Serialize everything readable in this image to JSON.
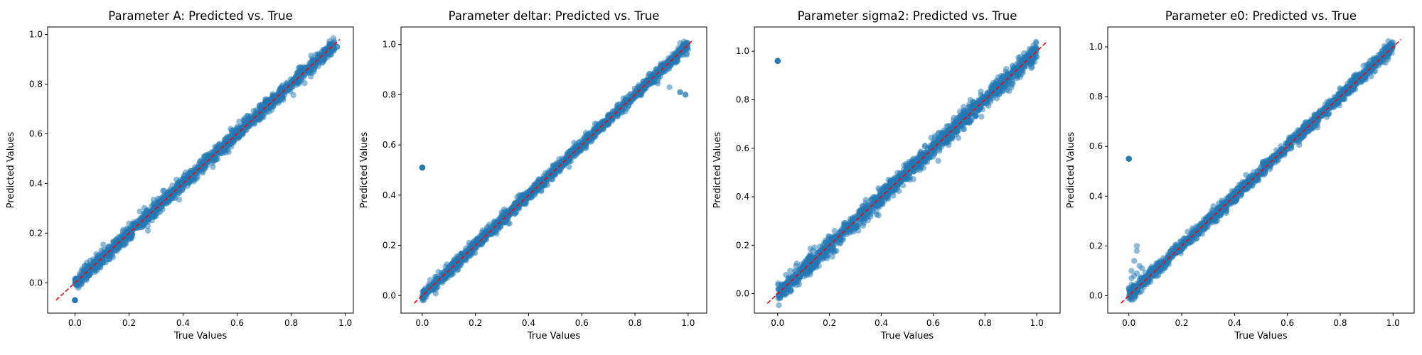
{
  "figure": {
    "marker_color": "#1f77b4",
    "identity_line_color": "#ff0000"
  },
  "chart_data": [
    {
      "type": "scatter",
      "title": "Parameter A: Predicted vs. True",
      "xlabel": "True Values",
      "ylabel": "Predicted Values",
      "xlim": [
        -0.101,
        1.03
      ],
      "ylim": [
        -0.122,
        1.03
      ],
      "xticks": [
        "0.0",
        "0.2",
        "0.4",
        "0.6",
        "0.8",
        "1.0"
      ],
      "yticks": [
        "0.0",
        "0.2",
        "0.4",
        "0.6",
        "0.8",
        "1.0"
      ],
      "grid": false,
      "identity_line": [
        -0.07,
        0.98
      ],
      "band": {
        "x_range": [
          0.0,
          0.96
        ],
        "noise": 0.015
      },
      "outliers": [
        {
          "x": 0.0,
          "y": -0.07,
          "count": 6
        },
        {
          "x": 0.27,
          "y": 0.21,
          "count": 1
        },
        {
          "x": 0.97,
          "y": 0.95,
          "count": 2
        }
      ]
    },
    {
      "type": "scatter",
      "title": "Parameter deltar: Predicted vs. True",
      "xlabel": "True Values",
      "ylabel": "Predicted Values",
      "xlim": [
        -0.08,
        1.07
      ],
      "ylim": [
        -0.07,
        1.07
      ],
      "xticks": [
        "0.0",
        "0.2",
        "0.4",
        "0.6",
        "0.8",
        "1.0"
      ],
      "yticks": [
        "0.0",
        "0.2",
        "0.4",
        "0.6",
        "0.8",
        "1.0"
      ],
      "grid": false,
      "identity_line": [
        -0.03,
        1.02
      ],
      "band": {
        "x_range": [
          0.0,
          1.0
        ],
        "noise": 0.013
      },
      "outliers": [
        {
          "x": 0.0,
          "y": 0.51,
          "count": 6
        },
        {
          "x": 0.97,
          "y": 0.81,
          "count": 2
        },
        {
          "x": 0.99,
          "y": 0.8,
          "count": 2
        },
        {
          "x": 0.93,
          "y": 0.83,
          "count": 1
        }
      ]
    },
    {
      "type": "scatter",
      "title": "Parameter sigma2: Predicted vs. True",
      "xlabel": "True Values",
      "ylabel": "Predicted Values",
      "xlim": [
        -0.09,
        1.09
      ],
      "ylim": [
        -0.08,
        1.1
      ],
      "xticks": [
        "0.0",
        "0.2",
        "0.4",
        "0.6",
        "0.8",
        "1.0"
      ],
      "yticks": [
        "0.0",
        "0.2",
        "0.4",
        "0.6",
        "0.8",
        "1.0"
      ],
      "grid": false,
      "identity_line": [
        -0.04,
        1.04
      ],
      "band": {
        "x_range": [
          0.0,
          1.0
        ],
        "noise": 0.02
      },
      "outliers": [
        {
          "x": 0.0,
          "y": 0.96,
          "count": 6
        }
      ]
    },
    {
      "type": "scatter",
      "title": "Parameter e0: Predicted vs. True",
      "xlabel": "True Values",
      "ylabel": "Predicted Values",
      "xlim": [
        -0.08,
        1.08
      ],
      "ylim": [
        -0.07,
        1.08
      ],
      "xticks": [
        "0.0",
        "0.2",
        "0.4",
        "0.6",
        "0.8",
        "1.0"
      ],
      "yticks": [
        "0.0",
        "0.2",
        "0.4",
        "0.6",
        "0.8",
        "1.0"
      ],
      "grid": false,
      "identity_line": [
        -0.03,
        1.03
      ],
      "band": {
        "x_range": [
          0.0,
          1.0
        ],
        "noise": 0.013
      },
      "outliers": [
        {
          "x": 0.0,
          "y": 0.55,
          "count": 6
        },
        {
          "x": 0.03,
          "y": 0.2,
          "count": 1
        },
        {
          "x": 0.03,
          "y": 0.18,
          "count": 1
        },
        {
          "x": 0.02,
          "y": 0.14,
          "count": 1
        },
        {
          "x": 0.04,
          "y": 0.12,
          "count": 1
        },
        {
          "x": 0.01,
          "y": 0.1,
          "count": 1
        },
        {
          "x": 0.03,
          "y": 0.09,
          "count": 1
        },
        {
          "x": 0.02,
          "y": 0.08,
          "count": 1
        },
        {
          "x": 0.05,
          "y": 0.11,
          "count": 1
        },
        {
          "x": 0.01,
          "y": 0.07,
          "count": 1
        },
        {
          "x": 0.04,
          "y": 0.06,
          "count": 1
        },
        {
          "x": 0.02,
          "y": 0.04,
          "count": 1
        },
        {
          "x": 0.0,
          "y": 0.03,
          "count": 1
        },
        {
          "x": 0.05,
          "y": 0.05,
          "count": 1
        },
        {
          "x": 0.03,
          "y": 0.02,
          "count": 1
        },
        {
          "x": 0.01,
          "y": 0.01,
          "count": 1
        },
        {
          "x": 0.06,
          "y": 0.07,
          "count": 1
        },
        {
          "x": 0.32,
          "y": 0.36,
          "count": 1
        }
      ]
    }
  ]
}
